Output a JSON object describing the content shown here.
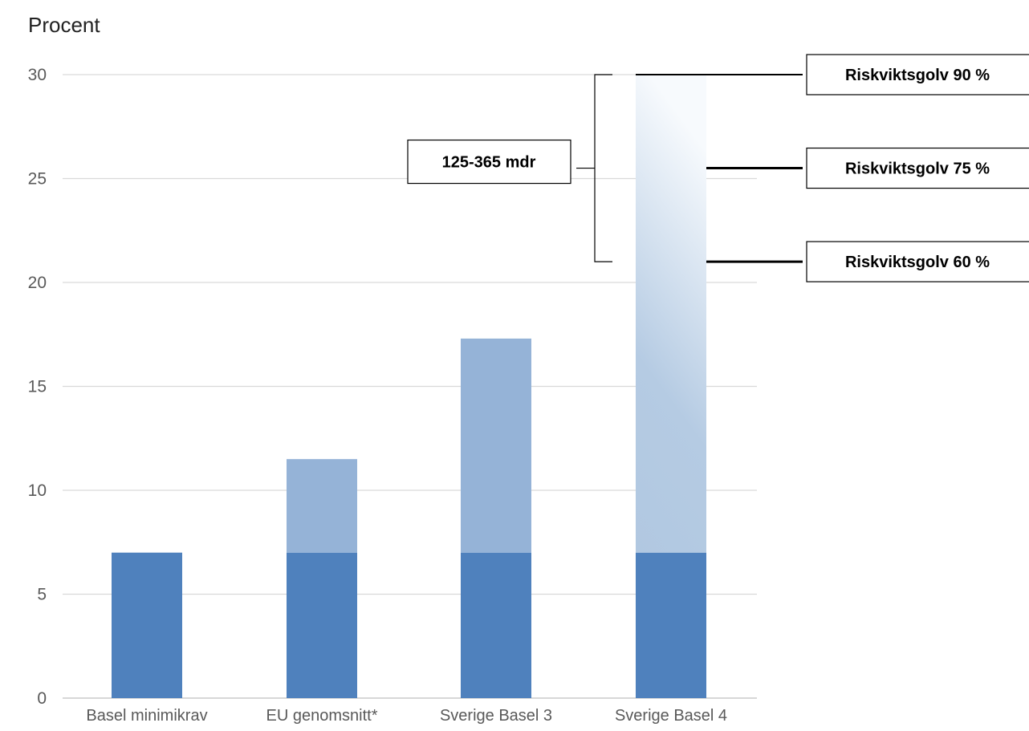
{
  "chart_data": {
    "type": "bar",
    "stacked": true,
    "ylabel": "Procent",
    "ylim": [
      0,
      30
    ],
    "yticks": [
      0,
      5,
      10,
      15,
      20,
      25,
      30
    ],
    "grid": true,
    "categories": [
      "Basel minimikrav",
      "EU genomsnitt*",
      "Sverige Basel 3",
      "Sverige Basel 4"
    ],
    "series": [
      {
        "values": [
          7,
          7,
          7,
          7
        ],
        "color": "#4f81bd"
      },
      {
        "values": [
          0,
          4.5,
          10.3,
          23
        ],
        "color": "#95b3d7",
        "last_bar_style": "gradient fading to white at top"
      }
    ],
    "annotations": {
      "range_label": "125-365 mdr",
      "floors": [
        {
          "label": "Riskviktsgolv 90 %",
          "y": 30
        },
        {
          "label": "Riskviktsgolv 75 %",
          "y": 25.5
        },
        {
          "label": "Riskviktsgolv 60 %",
          "y": 21
        }
      ],
      "bracket_range": [
        21,
        30
      ]
    }
  }
}
